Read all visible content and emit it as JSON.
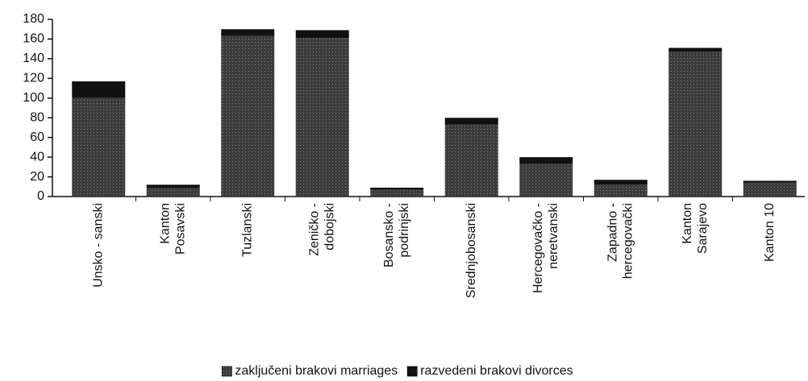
{
  "chart_data": {
    "type": "bar",
    "stacked": true,
    "categories": [
      [
        "Unsko - sanski"
      ],
      [
        "Kanton",
        "Posavski"
      ],
      [
        "Tuzlanski"
      ],
      [
        "Zeničko -",
        "dobojski"
      ],
      [
        "Bosansko -",
        "podrinjski"
      ],
      [
        "Srednjobosanski"
      ],
      [
        "Hercegovačko -",
        "neretvanski"
      ],
      [
        "Zapadno -",
        "hercegovački"
      ],
      [
        "Kanton",
        "Sarajevo"
      ],
      [
        "Kanton 10"
      ]
    ],
    "series": [
      {
        "name": "zaključeni brakovi marriages",
        "color": "#3c3c3c",
        "values": [
          100,
          9,
          163,
          161,
          7,
          73,
          33,
          12,
          147,
          14
        ]
      },
      {
        "name": "razvedeni brakovi divorces",
        "color": "#111111",
        "values": [
          17,
          3,
          7,
          8,
          2,
          7,
          7,
          5,
          4,
          2
        ]
      }
    ],
    "ylim": [
      0,
      180
    ],
    "yticks": [
      0,
      20,
      40,
      60,
      80,
      100,
      120,
      140,
      160,
      180
    ],
    "legend": "bottom"
  }
}
